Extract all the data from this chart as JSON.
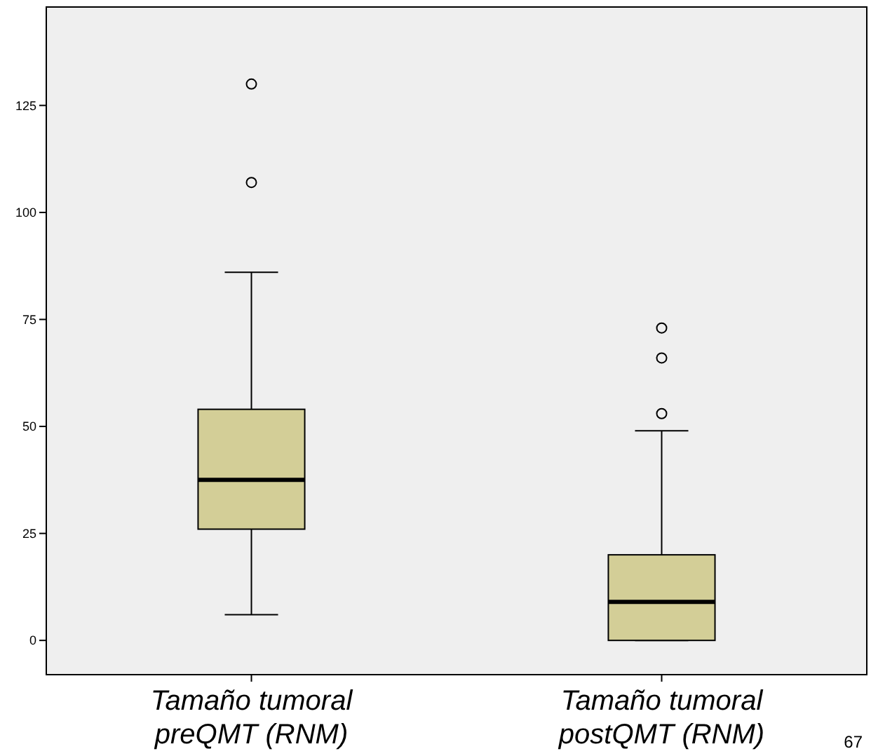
{
  "chart_data": {
    "type": "box",
    "categories": [
      "Tamaño tumoral preQMT (RNM)",
      "Tamaño tumoral postQMT (RNM)"
    ],
    "boxes": [
      {
        "low": 6,
        "q1": 26,
        "median": 37.5,
        "q3": 54,
        "high": 86,
        "outliers": [
          107,
          130
        ]
      },
      {
        "low": 0,
        "q1": 0,
        "median": 9,
        "q3": 20,
        "high": 49,
        "outliers": [
          53,
          66,
          73
        ]
      }
    ],
    "color": "#d3ce97",
    "ylim": [
      -8,
      148
    ],
    "yticks": [
      0,
      25,
      50,
      75,
      100,
      125
    ],
    "grid": false,
    "annotations": [
      "67"
    ]
  }
}
